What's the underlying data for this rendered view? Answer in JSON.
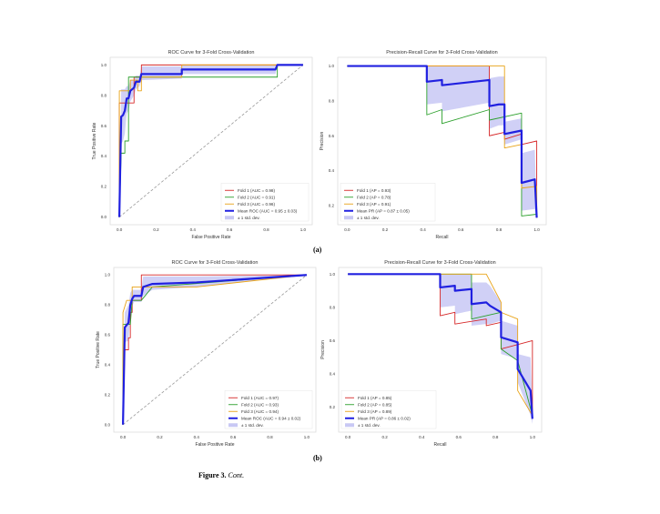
{
  "panel_labels": {
    "a": "(a)",
    "b": "(b)"
  },
  "caption": {
    "label": "Figure 3.",
    "text": "Cont."
  },
  "colors": {
    "fold1": "#d62728",
    "fold2": "#2ca02c",
    "fold3": "#e8a317",
    "mean": "#2020e0",
    "band": "#c8c8f4",
    "chance": "#999999"
  },
  "chart_data": [
    {
      "type": "line",
      "title": "ROC Curve for 3-Fold Cross-Validation",
      "xlabel": "False Positive Rate",
      "ylabel": "True Positive Rate",
      "xlim": [
        -0.05,
        1.05
      ],
      "ylim": [
        -0.05,
        1.05
      ],
      "xticks": [
        "0.0",
        "0.2",
        "0.4",
        "0.6",
        "0.8",
        "1.0"
      ],
      "yticks": [
        "0.0",
        "0.2",
        "0.4",
        "0.6",
        "0.8",
        "1.0"
      ],
      "grid": false,
      "legend": "lower-right",
      "chance_line": true,
      "series": [
        {
          "name": "Fold 1 (AUC = 0.98)",
          "color": "fold1",
          "x": [
            0,
            0,
            0.08,
            0.08,
            0.12,
            0.12,
            1
          ],
          "y": [
            0,
            0.75,
            0.75,
            0.92,
            0.92,
            1,
            1
          ]
        },
        {
          "name": "Fold 2 (AUC = 0.91)",
          "color": "fold2",
          "x": [
            0,
            0.01,
            0.03,
            0.03,
            0.05,
            0.05,
            0.86,
            0.86,
            1
          ],
          "y": [
            0,
            0.42,
            0.42,
            0.5,
            0.5,
            0.92,
            0.92,
            1,
            1
          ]
        },
        {
          "name": "Fold 3 (AUC = 0.96)",
          "color": "fold3",
          "x": [
            0,
            0,
            0.06,
            0.06,
            0.1,
            0.1,
            0.12,
            0.12,
            0.34,
            0.34,
            1
          ],
          "y": [
            0,
            0.83,
            0.83,
            0.9,
            0.9,
            0.83,
            0.83,
            0.92,
            0.92,
            1,
            1
          ]
        },
        {
          "name": "Mean ROC (AUC = 0.95 ± 0.03)",
          "color": "mean",
          "mean": true,
          "x": [
            0,
            0.01,
            0.02,
            0.03,
            0.04,
            0.05,
            0.06,
            0.08,
            0.09,
            0.11,
            0.12,
            0.34,
            0.34,
            0.85,
            0.86,
            1
          ],
          "y": [
            0,
            0.66,
            0.67,
            0.7,
            0.78,
            0.78,
            0.83,
            0.85,
            0.89,
            0.89,
            0.94,
            0.94,
            0.97,
            0.97,
            1,
            1
          ]
        }
      ],
      "band": {
        "name": "± 1 std. dev.",
        "x": [
          0,
          0.01,
          0.02,
          0.03,
          0.04,
          0.05,
          0.06,
          0.08,
          0.09,
          0.11,
          0.12,
          0.34,
          0.34,
          0.85,
          0.86,
          1
        ],
        "lower": [
          0,
          0.48,
          0.5,
          0.55,
          0.68,
          0.7,
          0.76,
          0.8,
          0.84,
          0.86,
          0.9,
          0.91,
          0.94,
          0.94,
          1,
          1
        ],
        "upper": [
          0,
          0.84,
          0.84,
          0.84,
          0.86,
          0.86,
          0.9,
          0.9,
          0.93,
          0.93,
          0.99,
          0.99,
          1,
          1,
          1,
          1
        ]
      }
    },
    {
      "type": "line",
      "title": "Precision-Recall Curve for 3-Fold Cross-Validation",
      "xlabel": "Recall",
      "ylabel": "Precision",
      "xlim": [
        -0.05,
        1.05
      ],
      "ylim": [
        0.09,
        1.05
      ],
      "xticks": [
        "0.0",
        "0.2",
        "0.4",
        "0.6",
        "0.8",
        "1.0"
      ],
      "yticks": [
        "0.2",
        "0.4",
        "0.6",
        "0.8",
        "1.0"
      ],
      "grid": false,
      "legend": "lower-left",
      "chance_line": false,
      "series": [
        {
          "name": "Fold 1 (AP = 0.93)",
          "color": "fold1",
          "x": [
            0,
            0.75,
            0.75,
            0.83,
            0.83,
            0.92,
            0.92,
            1,
            1
          ],
          "y": [
            1,
            1,
            0.6,
            0.62,
            0.58,
            0.61,
            0.55,
            0.57,
            0.13
          ]
        },
        {
          "name": "Fold 2 (AP = 0.78)",
          "color": "fold2",
          "x": [
            0,
            0.42,
            0.42,
            0.5,
            0.5,
            0.75,
            0.75,
            0.92,
            0.92,
            1
          ],
          "y": [
            1,
            1,
            0.72,
            0.75,
            0.67,
            0.75,
            0.69,
            0.73,
            0.14,
            0.15
          ]
        },
        {
          "name": "Fold 3 (AP = 0.91)",
          "color": "fold3",
          "x": [
            0,
            0.83,
            0.83,
            0.92,
            0.92,
            1,
            1
          ],
          "y": [
            1,
            1,
            0.53,
            0.55,
            0.3,
            0.31,
            0.13
          ]
        },
        {
          "name": "Mean PR (AP = 0.87 ± 0.05)",
          "color": "mean",
          "mean": true,
          "x": [
            0,
            0.42,
            0.42,
            0.5,
            0.5,
            0.75,
            0.75,
            0.8,
            0.83,
            0.83,
            0.92,
            0.92,
            0.99,
            1
          ],
          "y": [
            1,
            1,
            0.91,
            0.92,
            0.89,
            0.92,
            0.77,
            0.78,
            0.78,
            0.61,
            0.63,
            0.33,
            0.35,
            0.13
          ]
        }
      ],
      "band": {
        "name": "± 1 std. dev.",
        "x": [
          0,
          0.42,
          0.42,
          0.5,
          0.5,
          0.75,
          0.75,
          0.8,
          0.83,
          0.83,
          0.92,
          0.92,
          0.99,
          1
        ],
        "lower": [
          1,
          1,
          0.78,
          0.79,
          0.74,
          0.79,
          0.64,
          0.66,
          0.66,
          0.55,
          0.58,
          0.17,
          0.18,
          0.13
        ],
        "upper": [
          1,
          1,
          1,
          1,
          1,
          1,
          0.93,
          0.94,
          0.94,
          0.68,
          0.7,
          0.5,
          0.52,
          0.13
        ]
      }
    },
    {
      "type": "line",
      "title": "ROC Curve for 3-Fold Cross-Validation",
      "xlabel": "False Positive Rate",
      "ylabel": "True Positive Rate",
      "xlim": [
        -0.05,
        1.05
      ],
      "ylim": [
        -0.05,
        1.05
      ],
      "xticks": [
        "0.0",
        "0.2",
        "0.4",
        "0.6",
        "0.8",
        "1.0"
      ],
      "yticks": [
        "0.0",
        "0.2",
        "0.4",
        "0.6",
        "0.8",
        "1.0"
      ],
      "grid": false,
      "legend": "lower-right",
      "chance_line": true,
      "series": [
        {
          "name": "Fold 1 (AUC = 0.97)",
          "color": "fold1",
          "x": [
            0,
            0.01,
            0.03,
            0.03,
            0.04,
            0.04,
            0.05,
            0.05,
            0.1,
            0.1,
            1
          ],
          "y": [
            0,
            0.5,
            0.5,
            0.58,
            0.58,
            0.75,
            0.75,
            0.83,
            0.83,
            1,
            1
          ]
        },
        {
          "name": "Fold 2 (AUC = 0.93)",
          "color": "fold2",
          "x": [
            0,
            0,
            0.04,
            0.05,
            0.1,
            0.16,
            1
          ],
          "y": [
            0,
            0.67,
            0.67,
            0.83,
            0.83,
            0.92,
            1
          ]
        },
        {
          "name": "Fold 3 (AUC = 0.94)",
          "color": "fold3",
          "x": [
            0,
            0,
            0.02,
            0.05,
            0.05,
            0.12,
            0.4,
            1
          ],
          "y": [
            0,
            0.75,
            0.83,
            0.83,
            0.92,
            0.92,
            0.92,
            1
          ]
        },
        {
          "name": "Mean ROC (AUC = 0.94 ± 0.02)",
          "color": "mean",
          "mean": true,
          "x": [
            0,
            0.01,
            0.03,
            0.04,
            0.05,
            0.06,
            0.1,
            0.11,
            0.16,
            0.4,
            1
          ],
          "y": [
            0,
            0.65,
            0.68,
            0.8,
            0.84,
            0.86,
            0.86,
            0.92,
            0.94,
            0.95,
            1
          ]
        }
      ],
      "band": {
        "name": "± 1 std. dev.",
        "x": [
          0,
          0.01,
          0.03,
          0.04,
          0.05,
          0.06,
          0.1,
          0.11,
          0.16,
          0.4,
          1
        ],
        "lower": [
          0,
          0.55,
          0.56,
          0.72,
          0.79,
          0.82,
          0.82,
          0.86,
          0.9,
          0.92,
          1
        ],
        "upper": [
          0,
          0.75,
          0.8,
          0.88,
          0.9,
          0.9,
          0.9,
          0.99,
          0.99,
          0.99,
          1
        ]
      }
    },
    {
      "type": "line",
      "title": "Precision-Recall Curve for 3-Fold Cross-Validation",
      "xlabel": "Recall",
      "ylabel": "Precision",
      "xlim": [
        -0.05,
        1.05
      ],
      "ylim": [
        0.05,
        1.04
      ],
      "xticks": [
        "0.0",
        "0.2",
        "0.4",
        "0.6",
        "0.8",
        "1.0"
      ],
      "yticks": [
        "0.2",
        "0.4",
        "0.6",
        "0.8",
        "1.0"
      ],
      "grid": false,
      "legend": "lower-left",
      "chance_line": false,
      "series": [
        {
          "name": "Fold 1 (AP = 0.85)",
          "color": "fold1",
          "x": [
            0,
            0.5,
            0.5,
            0.58,
            0.58,
            0.75,
            0.75,
            0.83,
            0.83,
            1,
            1
          ],
          "y": [
            1,
            1,
            0.75,
            0.77,
            0.7,
            0.73,
            0.69,
            0.71,
            0.55,
            0.6,
            0.13
          ]
        },
        {
          "name": "Fold 2 (AP = 0.85)",
          "color": "fold2",
          "x": [
            0,
            0.67,
            0.67,
            0.83,
            0.83,
            0.92,
            1
          ],
          "y": [
            1,
            1,
            0.73,
            0.77,
            0.55,
            0.48,
            0.15
          ]
        },
        {
          "name": "Fold 3 (AP = 0.89)",
          "color": "fold3",
          "x": [
            0,
            0.75,
            0.83,
            0.83,
            0.92,
            0.92,
            1
          ],
          "y": [
            1,
            1,
            0.83,
            0.77,
            0.73,
            0.3,
            0.15
          ]
        },
        {
          "name": "Mean PR (AP = 0.86 ± 0.02)",
          "color": "mean",
          "mean": true,
          "x": [
            0,
            0.5,
            0.5,
            0.58,
            0.58,
            0.67,
            0.67,
            0.75,
            0.77,
            0.83,
            0.83,
            0.92,
            0.92,
            0.99,
            1
          ],
          "y": [
            1,
            1,
            0.92,
            0.93,
            0.9,
            0.91,
            0.82,
            0.83,
            0.81,
            0.77,
            0.62,
            0.59,
            0.43,
            0.3,
            0.13
          ]
        }
      ],
      "band": {
        "name": "± 1 std. dev.",
        "x": [
          0,
          0.5,
          0.5,
          0.58,
          0.58,
          0.67,
          0.67,
          0.75,
          0.77,
          0.83,
          0.83,
          0.92,
          0.92,
          0.99,
          1
        ],
        "lower": [
          1,
          1,
          0.8,
          0.81,
          0.76,
          0.78,
          0.69,
          0.7,
          0.7,
          0.72,
          0.52,
          0.49,
          0.35,
          0.15,
          0.1
        ],
        "upper": [
          1,
          1,
          1,
          1,
          1,
          1,
          0.95,
          0.95,
          0.93,
          0.83,
          0.72,
          0.69,
          0.52,
          0.5,
          0.16
        ]
      }
    }
  ]
}
